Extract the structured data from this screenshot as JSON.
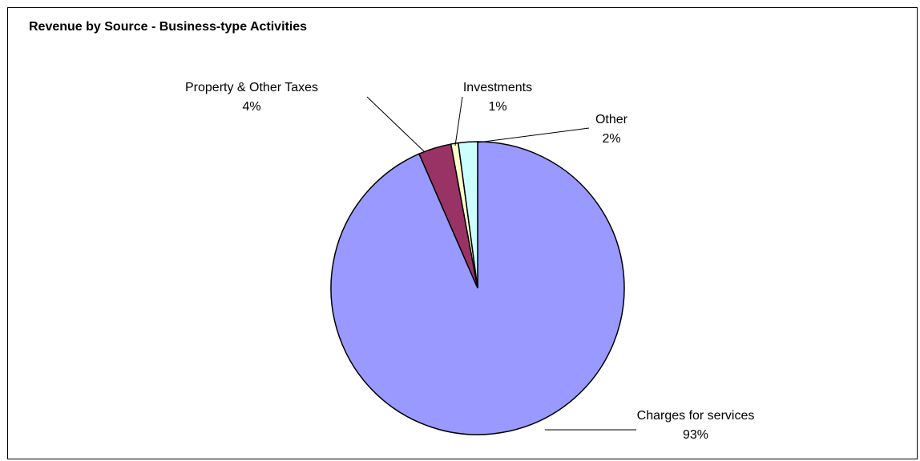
{
  "chart_data": {
    "type": "pie",
    "title": "Revenue by Source - Business-type Activities",
    "slices": [
      {
        "label": "Charges for services",
        "value": 93,
        "display": "93%",
        "color": "#9999FF"
      },
      {
        "label": "Property & Other Taxes",
        "value": 3.6,
        "display": "4%",
        "color": "#993366"
      },
      {
        "label": "Investments",
        "value": 0.8,
        "display": "1%",
        "color": "#FFFFCC"
      },
      {
        "label": "Other",
        "value": 2.1,
        "display": "2%",
        "color": "#CCFFFF"
      }
    ],
    "legend": "none",
    "data_labels": "outside with leader lines"
  }
}
